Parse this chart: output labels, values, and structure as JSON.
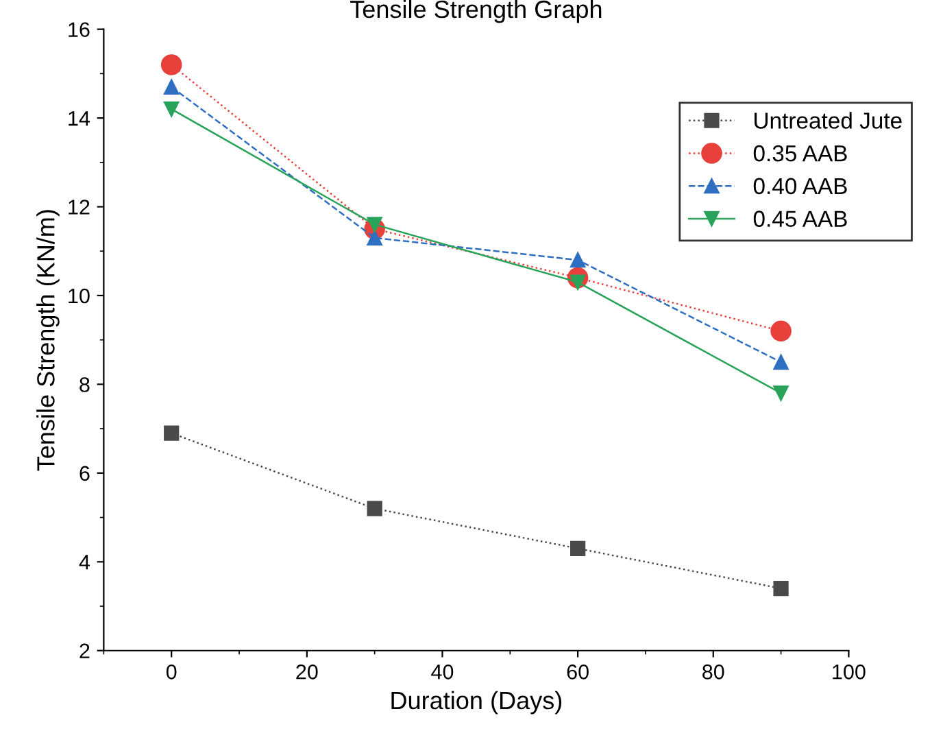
{
  "chart_data": {
    "type": "line",
    "title": "Tensile Strength Graph",
    "xlabel": "Duration (Days)",
    "ylabel": "Tensile Strength (KN/m)",
    "x": [
      0,
      30,
      60,
      90
    ],
    "series": [
      {
        "name": "Untreated Jute",
        "color": "#4a4a4a",
        "marker": "square",
        "line_style": "dotted",
        "values": [
          6.9,
          5.2,
          4.3,
          3.4
        ]
      },
      {
        "name": "0.35 AAB",
        "color": "#e8403a",
        "marker": "circle",
        "line_style": "dotted",
        "values": [
          15.2,
          11.5,
          10.4,
          9.2
        ]
      },
      {
        "name": "0.40 AAB",
        "color": "#2f6fc2",
        "marker": "triangle",
        "line_style": "dashed",
        "values": [
          14.7,
          11.3,
          10.8,
          8.5
        ]
      },
      {
        "name": "0.45 AAB",
        "color": "#2aa35a",
        "marker": "triangle_down",
        "line_style": "solid",
        "values": [
          14.2,
          11.6,
          10.3,
          7.8
        ]
      }
    ],
    "xlim": [
      -10,
      100
    ],
    "xticks": [
      0,
      20,
      40,
      60,
      80,
      100
    ],
    "ylim": [
      2,
      16
    ],
    "yticks": [
      2,
      4,
      6,
      8,
      10,
      12,
      14,
      16
    ],
    "grid": false,
    "legend": "top right"
  }
}
